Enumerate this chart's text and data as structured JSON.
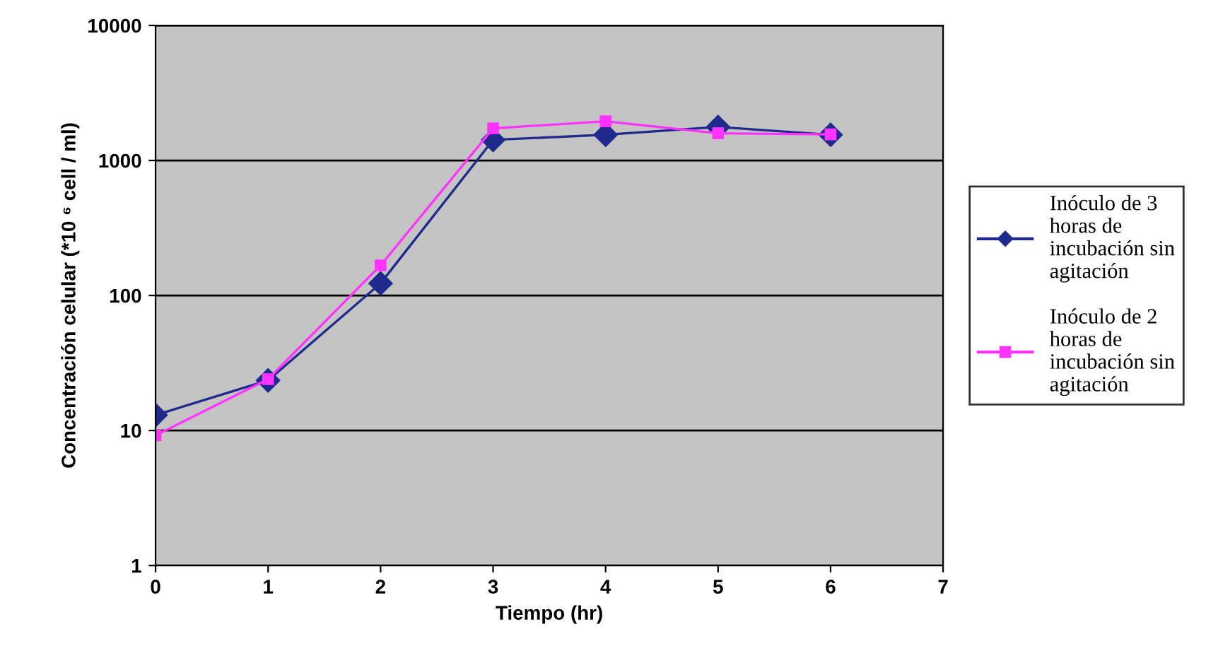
{
  "chart_data": {
    "type": "line",
    "xlabel": "Tiempo (hr)",
    "ylabel": "Concentración celular (*10 ⁶ cell / ml)",
    "x": [
      0,
      1,
      2,
      3,
      4,
      5,
      6
    ],
    "series": [
      {
        "name": "Inóculo de 3 horas de incubación sin agitación",
        "color": "#1f2a8c",
        "marker": "diamond",
        "values": [
          13,
          23.5,
          123,
          1420,
          1550,
          1770,
          1550
        ]
      },
      {
        "name": "Inóculo de 2 horas de incubación sin agitación",
        "color": "#ff33ff",
        "marker": "square",
        "values": [
          9.2,
          24,
          167,
          1730,
          1950,
          1590,
          1560
        ]
      }
    ],
    "log": "y",
    "xlim": [
      0,
      7
    ],
    "xticks": [
      0,
      1,
      2,
      3,
      4,
      5,
      6,
      7
    ],
    "ylim": [
      1,
      10000
    ],
    "yticks": [
      1,
      10,
      100,
      1000,
      10000
    ],
    "grid": "y",
    "legend": "right",
    "line_style": "solid"
  }
}
